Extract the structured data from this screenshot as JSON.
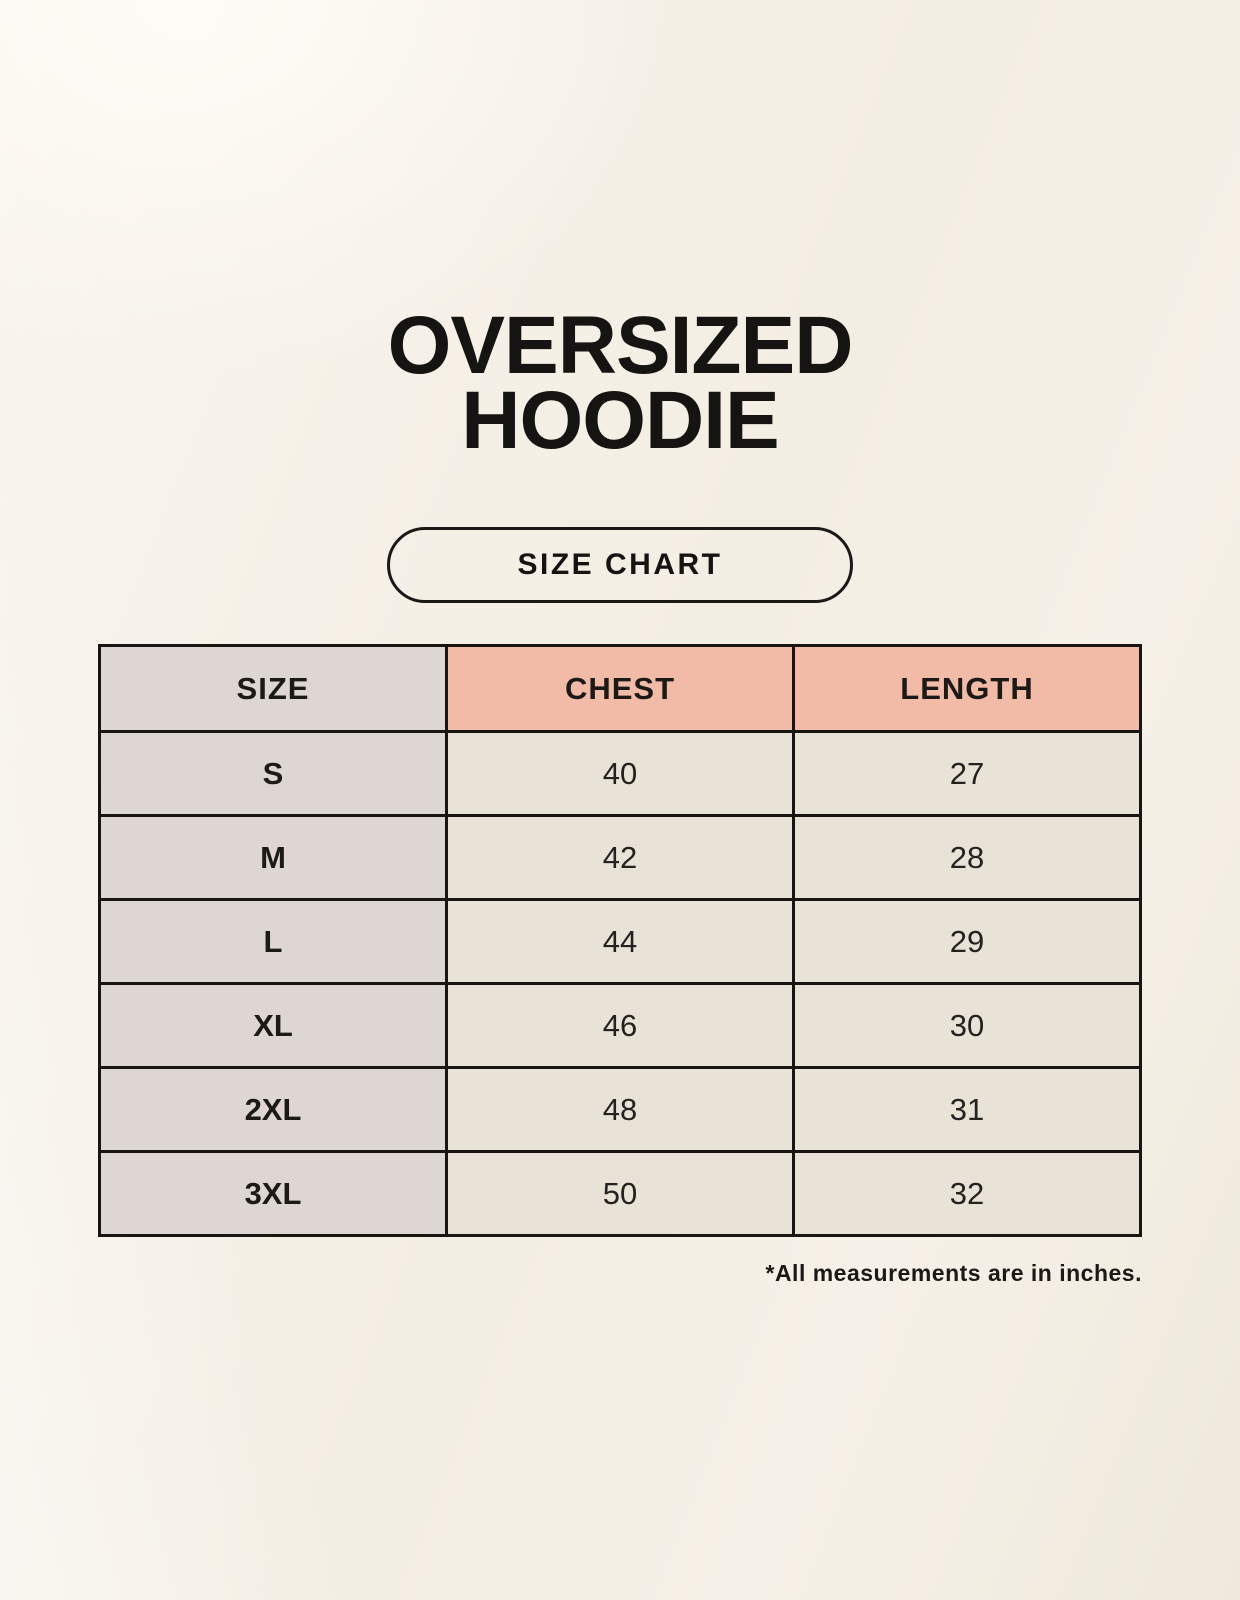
{
  "title": {
    "line1": "OVERSIZED",
    "line2": "HOODIE"
  },
  "button": {
    "label": "SIZE CHART"
  },
  "table": {
    "headers": [
      "SIZE",
      "CHEST",
      "LENGTH"
    ],
    "rows": [
      {
        "size": "S",
        "chest": "40",
        "length": "27"
      },
      {
        "size": "M",
        "chest": "42",
        "length": "28"
      },
      {
        "size": "L",
        "chest": "44",
        "length": "29"
      },
      {
        "size": "XL",
        "chest": "46",
        "length": "30"
      },
      {
        "size": "2XL",
        "chest": "48",
        "length": "31"
      },
      {
        "size": "3XL",
        "chest": "50",
        "length": "32"
      }
    ]
  },
  "footnote": "*All measurements are in inches.",
  "colors": {
    "background": "#f7f2e9",
    "header_accent": "#f2bba8",
    "size_column": "#ded6d2",
    "data_cell": "#e9e2d7",
    "border": "#181512",
    "text": "#161412"
  }
}
